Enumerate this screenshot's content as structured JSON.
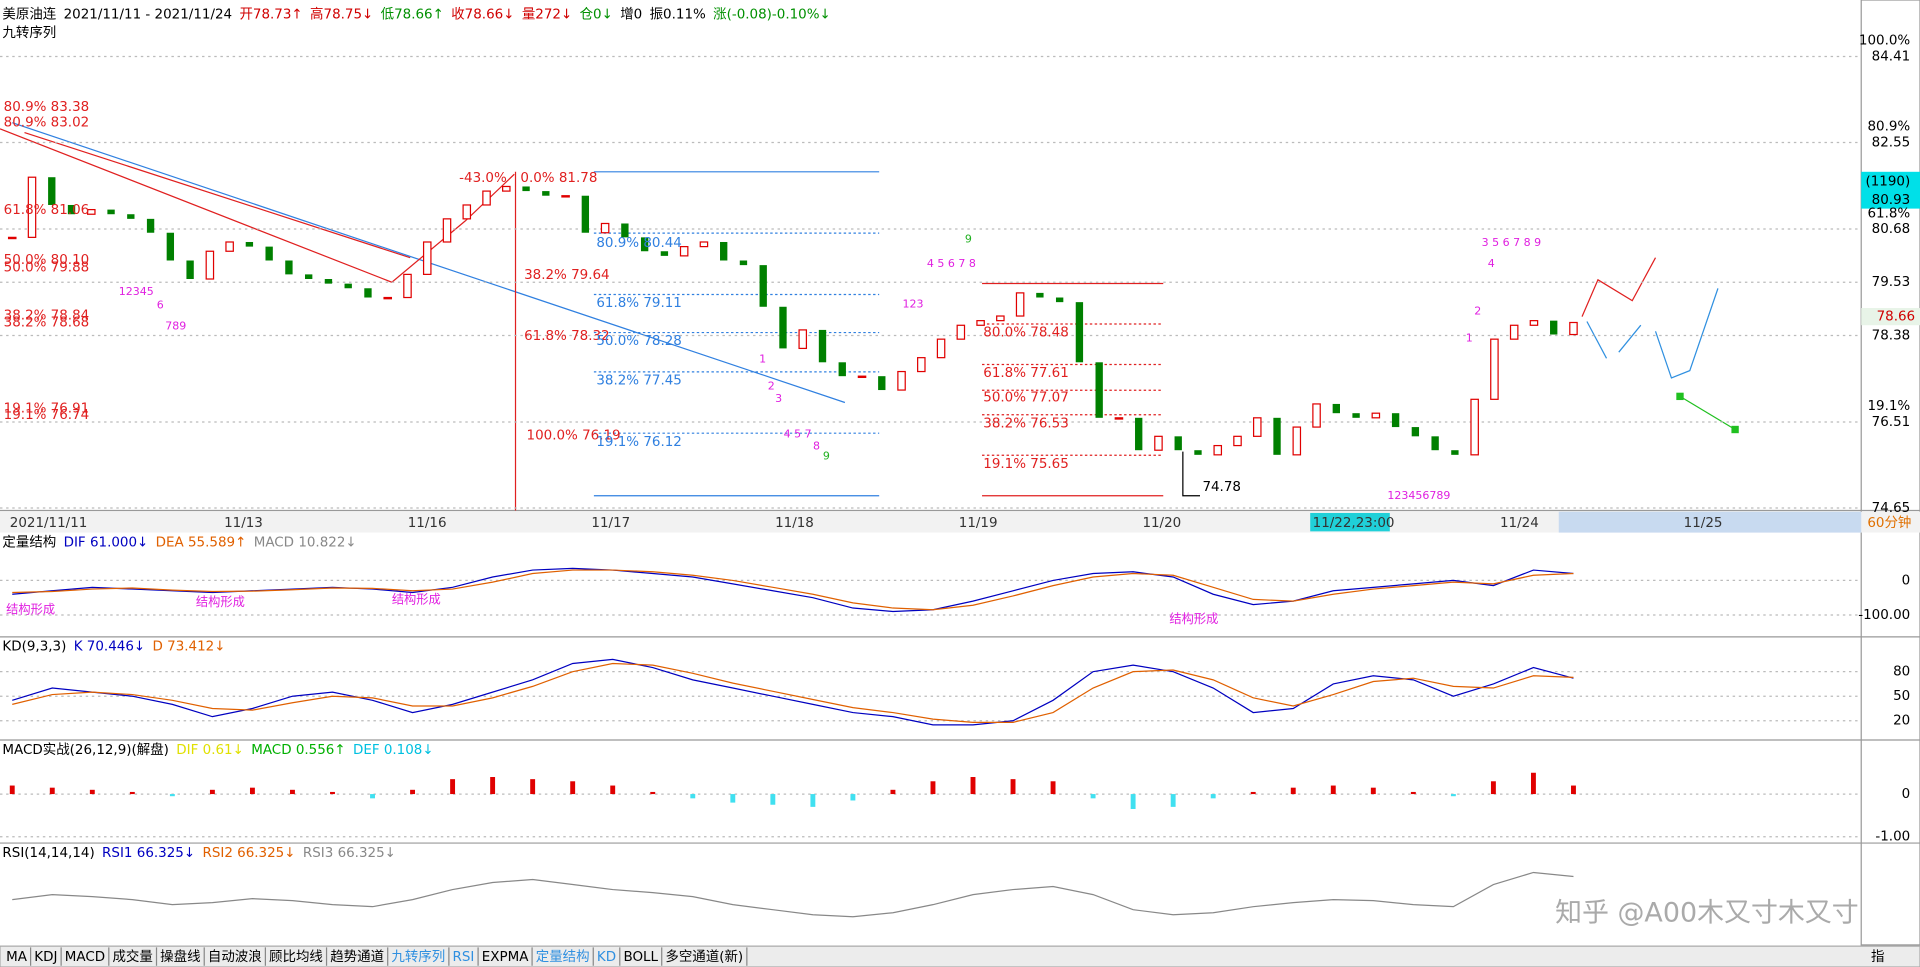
{
  "header": {
    "symbol": "美原油连",
    "range": "2021/11/11 - 2021/11/24",
    "quote": [
      {
        "text": "开78.73↑",
        "color": "#d00000"
      },
      {
        "text": "高78.75↓",
        "color": "#d00000"
      },
      {
        "text": "低78.66↑",
        "color": "#009000"
      },
      {
        "text": "收78.66↓",
        "color": "#d00000"
      },
      {
        "text": "量272↓",
        "color": "#d00000"
      },
      {
        "text": "仓0↓",
        "color": "#009000"
      },
      {
        "text": "增0",
        "color": "#000000"
      },
      {
        "text": "振0.11%",
        "color": "#000000"
      },
      {
        "text": "涨(-0.08)-0.10%↓",
        "color": "#009000"
      }
    ],
    "indicator": "九转序列"
  },
  "main": {
    "ylim": [
      74.65,
      84.41
    ],
    "yticks": [
      84.41,
      82.55,
      80.68,
      79.53,
      78.38,
      76.51,
      74.65
    ],
    "percent_labels": [
      "100.0%",
      "80.9%",
      "61.8%",
      "19.1%"
    ],
    "current": {
      "count": "(1190)",
      "price": 80.93
    },
    "last_price": 78.66,
    "low_label": 74.78,
    "closes": [
      80.5,
      81.8,
      81.2,
      81.0,
      81.1,
      81.0,
      80.9,
      80.6,
      80.0,
      79.6,
      80.2,
      80.4,
      80.3,
      80.0,
      79.7,
      79.6,
      79.5,
      79.4,
      79.2,
      79.2,
      79.7,
      80.4,
      80.9,
      81.2,
      81.5,
      81.6,
      81.5,
      81.4,
      81.4,
      80.6,
      80.8,
      80.5,
      80.2,
      80.1,
      80.3,
      80.4,
      80.0,
      79.9,
      79.0,
      78.1,
      78.5,
      77.8,
      77.5,
      77.5,
      77.2,
      77.6,
      77.9,
      78.3,
      78.6,
      78.7,
      78.8,
      79.3,
      79.2,
      79.1,
      77.8,
      76.6,
      76.6,
      75.9,
      76.2,
      75.9,
      75.8,
      76.0,
      76.2,
      76.6,
      75.8,
      76.4,
      76.9,
      76.7,
      76.6,
      76.7,
      76.4,
      76.2,
      75.9,
      75.8,
      77.0,
      78.3,
      78.6,
      78.7,
      78.4,
      78.66
    ],
    "fib_red": [
      "80.9% 83.38",
      "80.9% 83.02",
      "61.8% 81.06",
      "50.0% 80.10",
      "50.0% 79.88",
      "38.2% 78.84",
      "38.2% 78.68",
      "19.1% 76.91",
      "19.1% 76.74",
      "-43.0%",
      "0.0% 81.78",
      "38.2% 79.64",
      "61.8% 78.32",
      "100.0% 76.19",
      "80.0% 78.48",
      "61.8% 77.61",
      "50.0% 77.07",
      "38.2% 76.53",
      "19.1% 75.65"
    ],
    "fib_blue": [
      "80.9% 80.44",
      "61.8% 79.11",
      "50.0% 78.28",
      "38.2% 77.45",
      "19.1% 76.12"
    ],
    "nine_turn": [
      "12345",
      "6",
      "789",
      "1",
      "2",
      "3",
      "4 5 7",
      "8",
      "9",
      "123",
      "4 5 6 7 8",
      "9",
      "123456789",
      "2",
      "1",
      "3 5 6 7 8 9",
      "4"
    ]
  },
  "dates": [
    "2021/11/11",
    "11/13",
    "11/16",
    "11/17",
    "11/18",
    "11/19",
    "11/20",
    "11/22,23:00",
    "11/24",
    "11/25"
  ],
  "period": "60分钟",
  "panels": [
    {
      "type": "line",
      "parts": [
        {
          "text": "定量结构",
          "color": "#000000"
        },
        {
          "text": "DIF 61.000↓",
          "color": "#0000c0"
        },
        {
          "text": "DEA 55.589↑",
          "color": "#e06000"
        },
        {
          "text": "MACD 10.822↓",
          "color": "#888888"
        }
      ],
      "ylim": [
        -160,
        135
      ],
      "yticks": [
        0,
        {
          "value": -100,
          "label": "-100.00"
        }
      ],
      "notes": [
        "结构形成",
        "结构形成",
        "结构形成",
        "结构形成"
      ],
      "series": [
        {
          "color": "#0000c0",
          "values": [
            -40,
            -30,
            -20,
            -25,
            -30,
            -35,
            -30,
            -25,
            -20,
            -25,
            -35,
            -20,
            10,
            30,
            35,
            30,
            20,
            10,
            -10,
            -30,
            -50,
            -80,
            -90,
            -85,
            -60,
            -30,
            0,
            20,
            25,
            10,
            -40,
            -70,
            -60,
            -30,
            -20,
            -10,
            0,
            -15,
            30,
            20
          ]
        },
        {
          "color": "#e06000",
          "values": [
            -35,
            -32,
            -25,
            -22,
            -28,
            -32,
            -31,
            -27,
            -22,
            -23,
            -30,
            -25,
            -5,
            20,
            30,
            30,
            25,
            15,
            0,
            -20,
            -40,
            -65,
            -80,
            -85,
            -72,
            -45,
            -15,
            10,
            20,
            15,
            -20,
            -55,
            -60,
            -40,
            -25,
            -15,
            -5,
            -10,
            15,
            20
          ]
        }
      ]
    },
    {
      "type": "line",
      "parts": [
        {
          "text": "KD(9,3,3)",
          "color": "#000000"
        },
        {
          "text": "K 70.446↓",
          "color": "#0000c0"
        },
        {
          "text": "D 73.412↓",
          "color": "#e06000"
        }
      ],
      "ylim": [
        -2,
        121
      ],
      "yticks": [
        80,
        50,
        20
      ],
      "series": [
        {
          "color": "#0000c0",
          "values": [
            45,
            60,
            55,
            50,
            40,
            25,
            35,
            50,
            55,
            45,
            30,
            40,
            55,
            70,
            90,
            95,
            85,
            70,
            60,
            50,
            40,
            30,
            25,
            15,
            15,
            20,
            45,
            80,
            88,
            80,
            60,
            30,
            35,
            65,
            75,
            70,
            50,
            65,
            85,
            72
          ]
        },
        {
          "color": "#e06000",
          "values": [
            40,
            52,
            55,
            52,
            45,
            35,
            33,
            42,
            50,
            48,
            38,
            38,
            48,
            62,
            80,
            90,
            88,
            78,
            66,
            56,
            46,
            36,
            30,
            22,
            18,
            18,
            30,
            60,
            80,
            82,
            70,
            48,
            38,
            52,
            68,
            72,
            62,
            60,
            75,
            73
          ]
        }
      ]
    },
    {
      "type": "bar",
      "parts": [
        {
          "text": "MACD实战(26,12,9)(解盘)",
          "color": "#000000"
        },
        {
          "text": "DIF 0.61↓",
          "color": "#e0e000"
        },
        {
          "text": "MACD 0.556↑",
          "color": "#00b000"
        },
        {
          "text": "DEF 0.108↓",
          "color": "#00c0e0"
        }
      ],
      "ylim": [
        -1.12,
        1.24
      ],
      "yticks": [
        0,
        {
          "value": -1,
          "label": "-1.00"
        }
      ],
      "series": [
        {
          "color": "#e00000",
          "neg_color": "#40e0f0",
          "values": [
            0.2,
            0.15,
            0.1,
            0.05,
            -0.05,
            0.1,
            0.15,
            0.1,
            0.05,
            -0.1,
            0.1,
            0.35,
            0.4,
            0.35,
            0.3,
            0.2,
            0.05,
            -0.1,
            -0.2,
            -0.25,
            -0.3,
            -0.15,
            0.1,
            0.3,
            0.4,
            0.35,
            0.3,
            -0.1,
            -0.35,
            -0.3,
            -0.1,
            0.05,
            0.15,
            0.2,
            0.15,
            0.05,
            -0.05,
            0.3,
            0.5,
            0.2
          ]
        }
      ]
    },
    {
      "type": "line",
      "parts": [
        {
          "text": "RSI(14,14,14)",
          "color": "#000000"
        },
        {
          "text": "RSI1 66.325↓",
          "color": "#0000c0"
        },
        {
          "text": "RSI2 66.325↓",
          "color": "#e06000"
        },
        {
          "text": "RSI3 66.325↓",
          "color": "#888888"
        }
      ],
      "ylim": [
        0,
        100
      ],
      "yticks": [],
      "series": [
        {
          "color": "#888888",
          "values": [
            45,
            50,
            48,
            45,
            40,
            42,
            46,
            44,
            40,
            38,
            45,
            55,
            62,
            65,
            60,
            55,
            52,
            48,
            40,
            35,
            30,
            28,
            32,
            40,
            50,
            55,
            58,
            50,
            35,
            30,
            32,
            38,
            42,
            45,
            44,
            40,
            38,
            60,
            72,
            68
          ]
        }
      ]
    }
  ],
  "tabs": [
    {
      "text": "MA"
    },
    {
      "text": "KDJ"
    },
    {
      "text": "MACD"
    },
    {
      "text": "成交量"
    },
    {
      "text": "操盘线"
    },
    {
      "text": "自动波浪"
    },
    {
      "text": "顾比均线"
    },
    {
      "text": "趋势通道"
    },
    {
      "text": "九转序列",
      "active": true
    },
    {
      "text": "RSI",
      "active": true
    },
    {
      "text": "EXPMA"
    },
    {
      "text": "定量结构",
      "active": true
    },
    {
      "text": "KD",
      "active": true
    },
    {
      "text": "BOLL"
    },
    {
      "text": "多空通道(新)"
    }
  ],
  "corner": "指",
  "watermark": "知乎 @A00木又寸木又寸"
}
